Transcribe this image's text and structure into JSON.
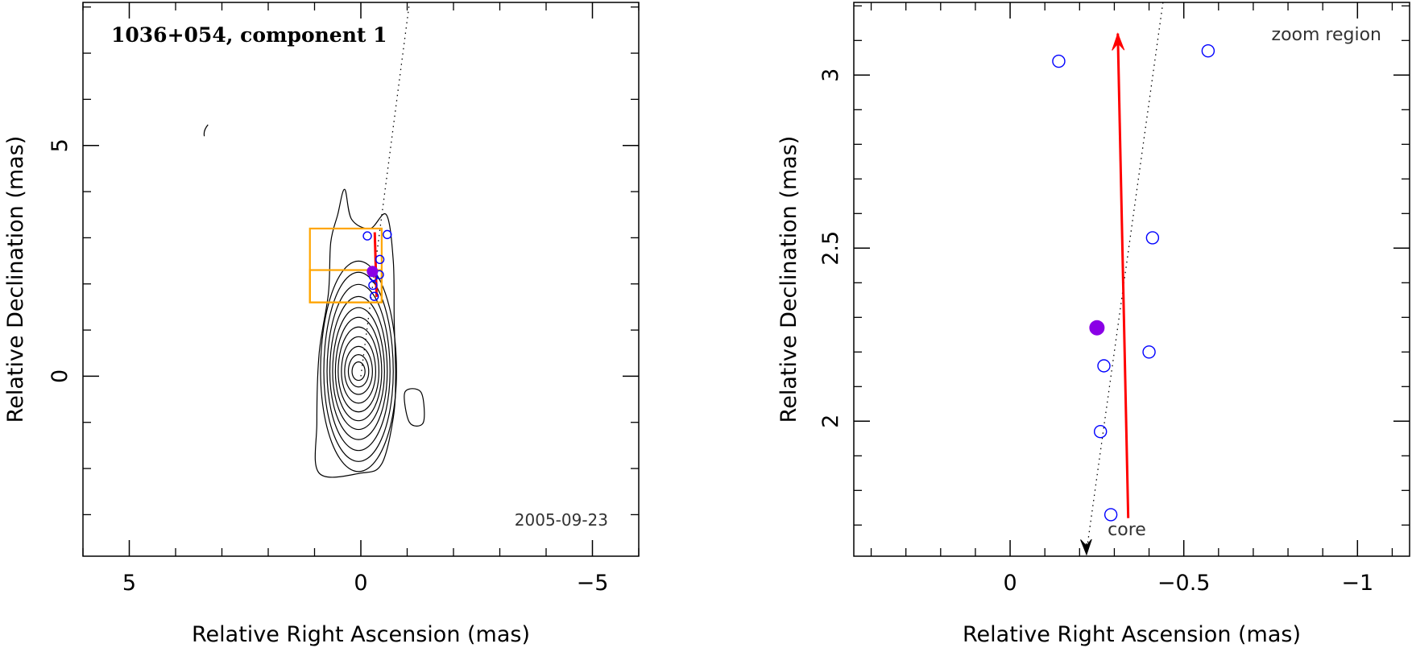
{
  "chart_data": [
    {
      "type": "contour",
      "title": "1036+054, component 1",
      "date_label": "2005-09-23",
      "xlabel": "Relative Right Ascension (mas)",
      "ylabel": "Relative Declination (mas)",
      "xlim": [
        6,
        -6
      ],
      "ylim": [
        -3.9,
        8.1
      ],
      "xticks": [
        5,
        0,
        -5
      ],
      "yticks": [
        0,
        5
      ],
      "xtick_labels": [
        "5",
        "0",
        "−5"
      ],
      "ytick_labels": [
        "0",
        "5"
      ],
      "contour_center": [
        0.05,
        0.1
      ],
      "contour_scales": [
        [
          0.14,
          0.2
        ],
        [
          0.22,
          0.35
        ],
        [
          0.3,
          0.52
        ],
        [
          0.37,
          0.72
        ],
        [
          0.44,
          0.92
        ],
        [
          0.5,
          1.12
        ],
        [
          0.56,
          1.32
        ],
        [
          0.62,
          1.55
        ],
        [
          0.68,
          1.8
        ],
        [
          0.75,
          2.05
        ],
        [
          0.82,
          2.28
        ]
      ],
      "outer_contour": [
        [
          0.9,
          -2.1
        ],
        [
          0.95,
          -1.0
        ],
        [
          0.9,
          0.5
        ],
        [
          0.7,
          1.8
        ],
        [
          0.65,
          2.9
        ],
        [
          0.5,
          3.5
        ],
        [
          0.35,
          4.05
        ],
        [
          0.2,
          3.4
        ],
        [
          -0.2,
          3.2
        ],
        [
          -0.55,
          3.5
        ],
        [
          -0.7,
          2.5
        ],
        [
          -0.72,
          1.2
        ],
        [
          -0.75,
          0.0
        ],
        [
          -0.7,
          -0.9
        ],
        [
          -0.45,
          -1.9
        ],
        [
          0.0,
          -2.1
        ]
      ],
      "side_blobs": [
        [
          [
            -0.95,
            -0.35
          ],
          [
            -1.3,
            -0.35
          ],
          [
            -1.35,
            -1.0
          ],
          [
            -1.05,
            -1.0
          ]
        ],
        [
          [
            3.3,
            5.45
          ],
          [
            3.38,
            5.2
          ]
        ]
      ],
      "jet_direction": {
        "from": [
          0.0,
          0.0
        ],
        "to": [
          -1.05,
          8.1
        ]
      },
      "zoom_boxes": [
        {
          "x": [
            1.1,
            -0.45
          ],
          "y": [
            1.6,
            3.2
          ],
          "color": "#FFA500"
        },
        {
          "x": [
            1.1,
            -0.45
          ],
          "y": [
            1.6,
            2.3
          ],
          "color": "#FFA500"
        }
      ],
      "motion_arrow": {
        "from": [
          -0.34,
          1.72
        ],
        "to": [
          -0.3,
          3.12
        ],
        "color": "#FF0000"
      },
      "components_open": [
        [
          -0.14,
          3.04
        ],
        [
          -0.57,
          3.07
        ],
        [
          -0.41,
          2.53
        ],
        [
          -0.4,
          2.2
        ],
        [
          -0.27,
          2.16
        ],
        [
          -0.26,
          1.97
        ],
        [
          -0.29,
          1.73
        ]
      ],
      "component_filled": [
        -0.25,
        2.27
      ],
      "marker_color": "#0000FF",
      "filled_color": "#8A00E6"
    },
    {
      "type": "scatter",
      "title": "zoom region",
      "xlabel": "Relative Right Ascension (mas)",
      "ylabel": "Relative Declination (mas)",
      "xlim": [
        0.45,
        -1.15
      ],
      "ylim": [
        1.61,
        3.21
      ],
      "xticks": [
        0,
        -0.5,
        -1
      ],
      "yticks": [
        2,
        2.5,
        3
      ],
      "xtick_labels": [
        "0",
        "−0.5",
        "−1"
      ],
      "ytick_labels": [
        "2",
        "2.5",
        "3"
      ],
      "core_label": "core",
      "jet_direction": {
        "from": [
          -0.44,
          3.21
        ],
        "to": [
          -0.22,
          1.61
        ]
      },
      "motion_arrow": {
        "from": [
          -0.34,
          1.72
        ],
        "to": [
          -0.31,
          3.12
        ],
        "color": "#FF0000"
      },
      "components_open": [
        [
          -0.14,
          3.04
        ],
        [
          -0.57,
          3.07
        ],
        [
          -0.41,
          2.53
        ],
        [
          -0.4,
          2.2
        ],
        [
          -0.27,
          2.16
        ],
        [
          -0.26,
          1.97
        ],
        [
          -0.29,
          1.73
        ]
      ],
      "component_filled": [
        -0.25,
        2.27
      ],
      "marker_color": "#0000FF",
      "filled_color": "#8A00E6"
    }
  ]
}
